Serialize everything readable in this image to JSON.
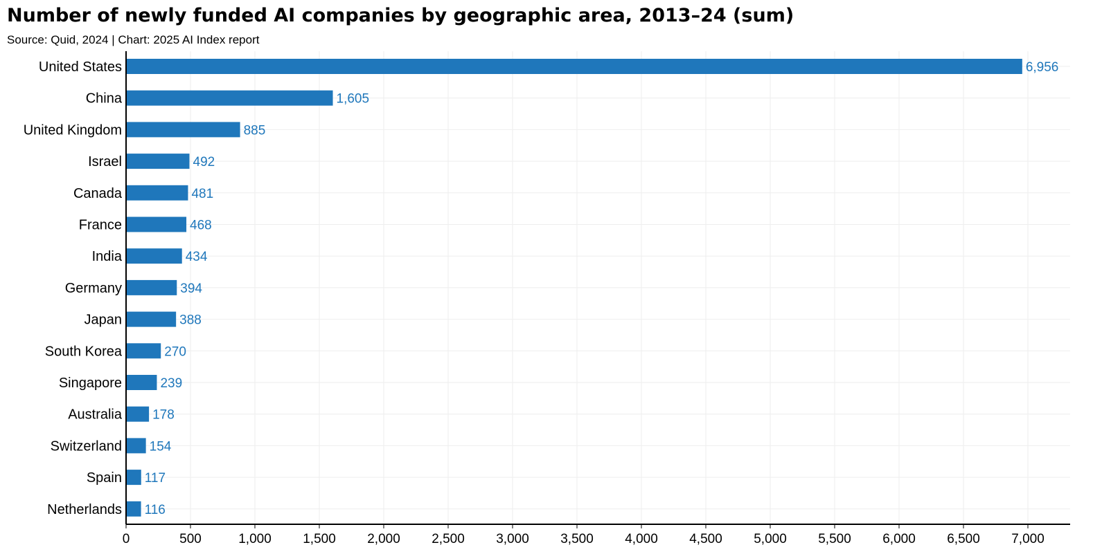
{
  "title": "Number of newly funded AI companies by geographic area, 2013–24 (sum)",
  "subtitle": "Source: Quid, 2024 | Chart: 2025 AI Index report",
  "colors": {
    "bar": "#1f77bb",
    "value_label": "#1f77bb",
    "grid": "#eeeeee",
    "axis": "#000000"
  },
  "chart_data": {
    "type": "bar",
    "orientation": "horizontal",
    "title": "Number of newly funded AI companies by geographic area, 2013–24 (sum)",
    "xlabel": "",
    "ylabel": "",
    "xlim": [
      0,
      7000
    ],
    "grid": true,
    "xticks": [
      0,
      500,
      1000,
      1500,
      2000,
      2500,
      3000,
      3500,
      4000,
      4500,
      5000,
      5500,
      6000,
      6500,
      7000
    ],
    "xtick_labels": [
      "0",
      "500",
      "1,000",
      "1,500",
      "2,000",
      "2,500",
      "3,000",
      "3,500",
      "4,000",
      "4,500",
      "5,000",
      "5,500",
      "6,000",
      "6,500",
      "7,000"
    ],
    "categories": [
      "United States",
      "China",
      "United Kingdom",
      "Israel",
      "Canada",
      "France",
      "India",
      "Germany",
      "Japan",
      "South Korea",
      "Singapore",
      "Australia",
      "Switzerland",
      "Spain",
      "Netherlands"
    ],
    "values": [
      6956,
      1605,
      885,
      492,
      481,
      468,
      434,
      394,
      388,
      270,
      239,
      178,
      154,
      117,
      116
    ],
    "value_labels": [
      "6,956",
      "1,605",
      "885",
      "492",
      "481",
      "468",
      "434",
      "394",
      "388",
      "270",
      "239",
      "178",
      "154",
      "117",
      "116"
    ]
  }
}
